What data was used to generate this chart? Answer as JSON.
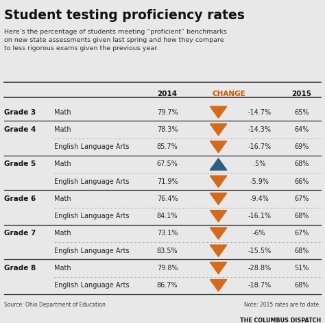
{
  "title": "Student testing proficiency rates",
  "subtitle": "Here’s the percentage of students meeting “proficient” benchmarks\non new state assessments given last spring and how they compare\nto less rigorous exams given the previous year.",
  "col_headers": [
    "2014",
    "CHANGE",
    "2015"
  ],
  "source": "Source: Ohio Department of Education",
  "note": "Note: 2015 rates are to date.",
  "credit": "THE COLUMBUS DISPATCH",
  "bg_color": "#e8e8e8",
  "rows": [
    {
      "grade": "Grade 3",
      "subject": "Math",
      "val2014": "79.7%",
      "change": "-14.7%",
      "val2015": "65%",
      "arrow": "down",
      "first_in_grade": true,
      "last_in_grade": true
    },
    {
      "grade": "Grade 4",
      "subject": "Math",
      "val2014": "78.3%",
      "change": "-14.3%",
      "val2015": "64%",
      "arrow": "down",
      "first_in_grade": true,
      "last_in_grade": false
    },
    {
      "grade": "Grade 4",
      "subject": "English Language Arts",
      "val2014": "85.7%",
      "change": "-16.7%",
      "val2015": "69%",
      "arrow": "down",
      "first_in_grade": false,
      "last_in_grade": true
    },
    {
      "grade": "Grade 5",
      "subject": "Math",
      "val2014": "67.5%",
      "change": ".5%",
      "val2015": "68%",
      "arrow": "up",
      "first_in_grade": true,
      "last_in_grade": false
    },
    {
      "grade": "Grade 5",
      "subject": "English Language Arts",
      "val2014": "71.9%",
      "change": "-5.9%",
      "val2015": "66%",
      "arrow": "down",
      "first_in_grade": false,
      "last_in_grade": true
    },
    {
      "grade": "Grade 6",
      "subject": "Math",
      "val2014": "76.4%",
      "change": "-9.4%",
      "val2015": "67%",
      "arrow": "down",
      "first_in_grade": true,
      "last_in_grade": false
    },
    {
      "grade": "Grade 6",
      "subject": "English Language Arts",
      "val2014": "84.1%",
      "change": "-16.1%",
      "val2015": "68%",
      "arrow": "down",
      "first_in_grade": false,
      "last_in_grade": true
    },
    {
      "grade": "Grade 7",
      "subject": "Math",
      "val2014": "73.1%",
      "change": "-6%",
      "val2015": "67%",
      "arrow": "down",
      "first_in_grade": true,
      "last_in_grade": false
    },
    {
      "grade": "Grade 7",
      "subject": "English Language Arts",
      "val2014": "83.5%",
      "change": "-15.5%",
      "val2015": "68%",
      "arrow": "down",
      "first_in_grade": false,
      "last_in_grade": true
    },
    {
      "grade": "Grade 8",
      "subject": "Math",
      "val2014": "79.8%",
      "change": "-28.8%",
      "val2015": "51%",
      "arrow": "down",
      "first_in_grade": true,
      "last_in_grade": false
    },
    {
      "grade": "Grade 8",
      "subject": "English Language Arts",
      "val2014": "86.7%",
      "change": "-18.7%",
      "val2015": "68%",
      "arrow": "down",
      "first_in_grade": false,
      "last_in_grade": true
    }
  ],
  "arrow_down_color": "#d46a1a",
  "arrow_up_color": "#2a6080",
  "header_line_color": "#333333",
  "grade_line_color": "#333333",
  "dashed_line_color": "#aaaaaa",
  "text_color": "#222222",
  "change_col_color": "#cc5500"
}
